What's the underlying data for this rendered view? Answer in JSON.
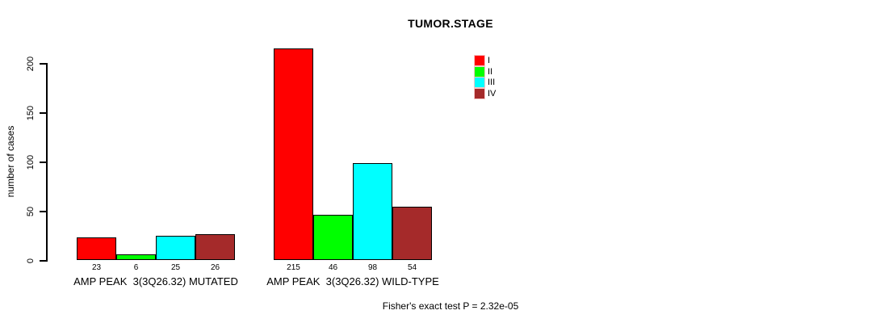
{
  "chart_data": {
    "type": "bar",
    "title": "TUMOR.STAGE",
    "xlabel": "",
    "ylabel": "number of cases",
    "yticks": [
      0,
      50,
      100,
      150,
      200
    ],
    "ylim": [
      0,
      215
    ],
    "grid": "off",
    "legend_position": "top-right",
    "categories": [
      "AMP PEAK  3(3Q26.32) MUTATED",
      "AMP PEAK  3(3Q26.32) WILD-TYPE"
    ],
    "series": [
      {
        "name": "I",
        "color": "#FF0000",
        "values": [
          23,
          215
        ]
      },
      {
        "name": "II",
        "color": "#00FF00",
        "values": [
          6,
          46
        ]
      },
      {
        "name": "III",
        "color": "#00FFFF",
        "values": [
          25,
          98
        ]
      },
      {
        "name": "IV",
        "color": "#A52A2A",
        "values": [
          26,
          54
        ]
      }
    ],
    "bar_value_labels": [
      [
        23,
        6,
        25,
        26
      ],
      [
        215,
        46,
        98,
        54
      ]
    ],
    "annotation": "Fisher's exact test P = 2.32e-05"
  }
}
